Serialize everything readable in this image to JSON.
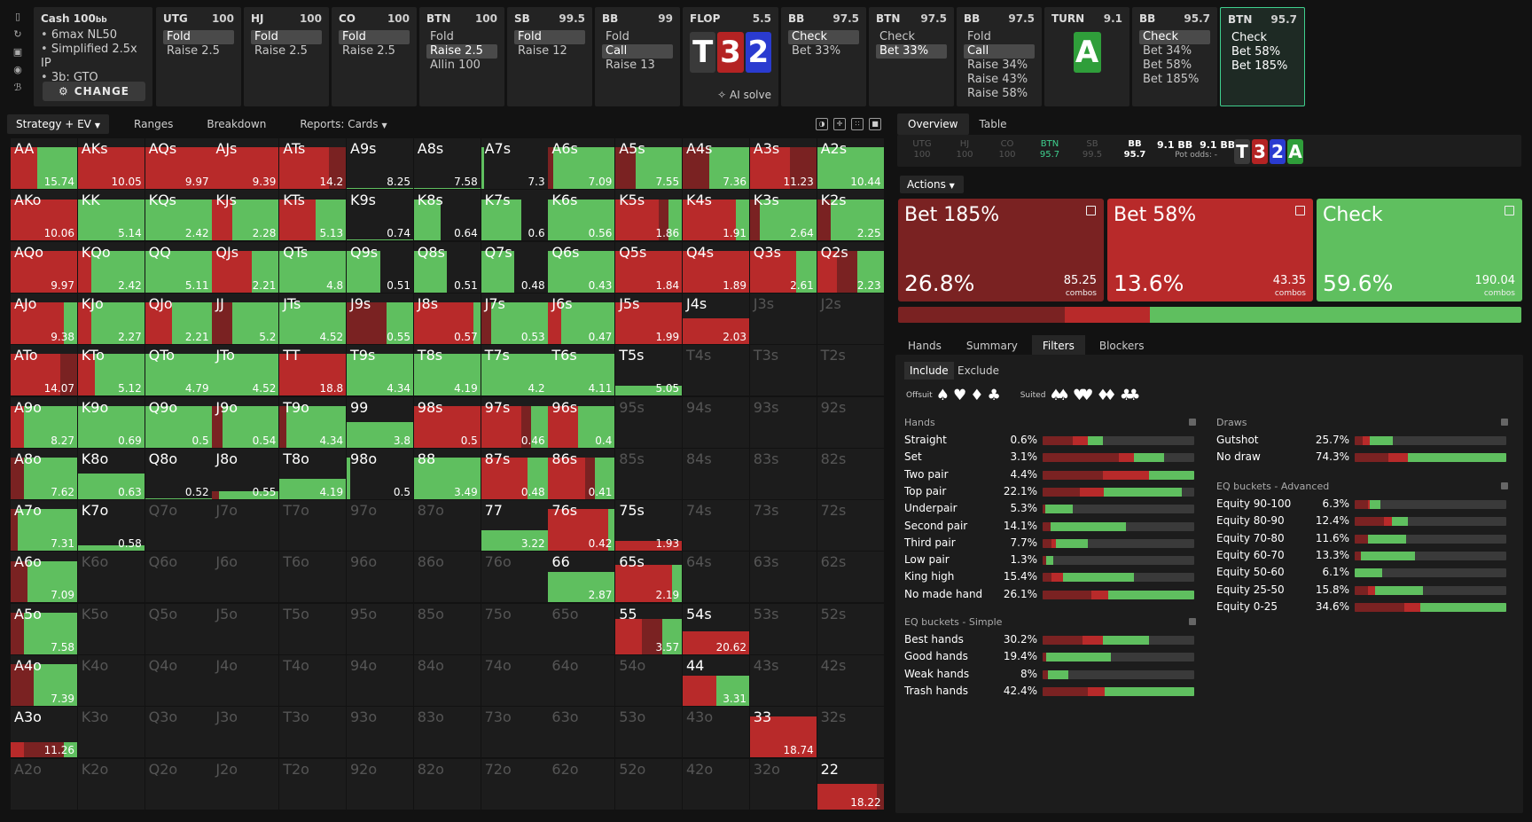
{
  "colors": {
    "red": "#b82a2a",
    "darkred": "#7a2222",
    "green": "#5fbf5f",
    "empty": "#1c1c1c"
  },
  "strip": {
    "cash": {
      "title": "Cash",
      "stack": "100",
      "unit": "bb",
      "info": [
        "6max NL50",
        "Simplified 2.5x IP",
        "3b: GTO"
      ],
      "change": "CHANGE"
    },
    "cards": [
      {
        "pos": "UTG",
        "stack": "100",
        "acts": [
          {
            "t": "Fold",
            "on": true
          },
          {
            "t": "Raise 2.5",
            "on": false
          }
        ]
      },
      {
        "pos": "HJ",
        "stack": "100",
        "acts": [
          {
            "t": "Fold",
            "on": true
          },
          {
            "t": "Raise 2.5",
            "on": false
          }
        ]
      },
      {
        "pos": "CO",
        "stack": "100",
        "acts": [
          {
            "t": "Fold",
            "on": true
          },
          {
            "t": "Raise 2.5",
            "on": false
          }
        ]
      },
      {
        "pos": "BTN",
        "stack": "100",
        "acts": [
          {
            "t": "Fold",
            "on": false
          },
          {
            "t": "Raise 2.5",
            "on": true
          },
          {
            "t": "Allin 100",
            "on": false
          }
        ]
      },
      {
        "pos": "SB",
        "stack": "99.5",
        "acts": [
          {
            "t": "Fold",
            "on": true
          },
          {
            "t": "Raise 12",
            "on": false
          }
        ]
      },
      {
        "pos": "BB",
        "stack": "99",
        "acts": [
          {
            "t": "Fold",
            "on": false
          },
          {
            "t": "Call",
            "on": true
          },
          {
            "t": "Raise 13",
            "on": false
          }
        ]
      },
      {
        "pos": "FLOP",
        "stack": "5.5",
        "board": true
      },
      {
        "pos": "BB",
        "stack": "97.5",
        "acts": [
          {
            "t": "Check",
            "on": true
          },
          {
            "t": "Bet 33%",
            "on": false
          }
        ]
      },
      {
        "pos": "BTN",
        "stack": "97.5",
        "acts": [
          {
            "t": "Check",
            "on": false
          },
          {
            "t": "Bet 33%",
            "on": true
          }
        ]
      },
      {
        "pos": "BB",
        "stack": "97.5",
        "acts": [
          {
            "t": "Fold",
            "on": false
          },
          {
            "t": "Call",
            "on": true
          },
          {
            "t": "Raise 34%",
            "on": false
          },
          {
            "t": "Raise 43%",
            "on": false
          },
          {
            "t": "Raise 58%",
            "on": false
          }
        ]
      },
      {
        "pos": "TURN",
        "stack": "9.1",
        "turn": true
      },
      {
        "pos": "BB",
        "stack": "95.7",
        "acts": [
          {
            "t": "Check",
            "on": true
          },
          {
            "t": "Bet 34%",
            "on": false
          },
          {
            "t": "Bet 58%",
            "on": false
          },
          {
            "t": "Bet 185%",
            "on": false
          }
        ]
      },
      {
        "pos": "BTN",
        "stack": "95.7",
        "sel": true,
        "acts": [
          {
            "t": "Check",
            "on": false
          },
          {
            "t": "Bet 58%",
            "on": false
          },
          {
            "t": "Bet 185%",
            "on": false
          }
        ]
      }
    ],
    "flop": [
      {
        "r": "T",
        "s": "s"
      },
      {
        "r": "3",
        "s": "h"
      },
      {
        "r": "2",
        "s": "d"
      }
    ],
    "turn": {
      "r": "A",
      "s": "c"
    },
    "ai": "AI solve"
  },
  "left_toolbar": [
    {
      "t": "Strategy + EV",
      "on": true,
      "caret": true
    },
    {
      "t": "Ranges"
    },
    {
      "t": "Breakdown"
    },
    {
      "t": "Reports: Cards",
      "caret": true
    }
  ],
  "grid": [
    [
      "AA",
      "15.74",
      "r:0.4,g:0.6"
    ],
    [
      "AKs",
      "10.05",
      "r:1"
    ],
    [
      "AQs",
      "9.97",
      "r:1"
    ],
    [
      "AJs",
      "9.39",
      "r:1"
    ],
    [
      "ATs",
      "14.2",
      "r:0.75,R:0.25"
    ],
    [
      "A9s",
      "8.25",
      "z"
    ],
    [
      "A8s",
      "7.58",
      "z"
    ],
    [
      "A7s",
      "7.3",
      "g:0.04"
    ],
    [
      "A6s",
      "7.09",
      "R:0.08,g:0.92"
    ],
    [
      "A5s",
      "7.55",
      "R:0.3,g:0.7"
    ],
    [
      "A4s",
      "7.36",
      "R:0.4,g:0.6"
    ],
    [
      "A3s",
      "11.23",
      "r:0.6,R:0.4"
    ],
    [
      "A2s",
      "10.44",
      "g:1"
    ],
    [
      "AKo",
      "10.06",
      "r:1"
    ],
    [
      "KK",
      "5.14",
      "g:1"
    ],
    [
      "KQs",
      "2.42",
      "g:1"
    ],
    [
      "KJs",
      "2.28",
      "r:0.3,g:0.7"
    ],
    [
      "KTs",
      "5.13",
      "r:0.55,g:0.45"
    ],
    [
      "K9s",
      "0.74",
      "z"
    ],
    [
      "K8s",
      "0.64",
      "g:0.4"
    ],
    [
      "K7s",
      "0.6",
      "g:0.6"
    ],
    [
      "K6s",
      "0.56",
      "g:1"
    ],
    [
      "K5s",
      "1.86",
      "r:0.65,R:0.15,g:0.2"
    ],
    [
      "K4s",
      "1.91",
      "r:0.8,g:0.2"
    ],
    [
      "K3s",
      "2.64",
      "R:0.15,g:0.85"
    ],
    [
      "K2s",
      "2.25",
      "R:0.2,g:0.8"
    ],
    [
      "AQo",
      "9.97",
      "r:1"
    ],
    [
      "KQo",
      "2.42",
      "r:0.2,g:0.8"
    ],
    [
      "QQ",
      "5.11",
      "g:1"
    ],
    [
      "QJs",
      "2.21",
      "r:0.6,g:0.4"
    ],
    [
      "QTs",
      "4.8",
      "g:1"
    ],
    [
      "Q9s",
      "0.51",
      "g:0.5"
    ],
    [
      "Q8s",
      "0.51",
      "g:0.5"
    ],
    [
      "Q7s",
      "0.48",
      "g:0.5"
    ],
    [
      "Q6s",
      "0.43",
      "g:1"
    ],
    [
      "Q5s",
      "1.84",
      "r:1"
    ],
    [
      "Q4s",
      "1.89",
      "r:1"
    ],
    [
      "Q3s",
      "2.61",
      "r:0.7,g:0.3"
    ],
    [
      "Q2s",
      "2.23",
      "r:0.3,R:0.3,g:0.4"
    ],
    [
      "AJo",
      "9.38",
      "r:0.8,g:0.2"
    ],
    [
      "KJo",
      "2.27",
      "r:0.2,g:0.8"
    ],
    [
      "QJo",
      "2.21",
      "r:0.4,g:0.6"
    ],
    [
      "JJ",
      "5.2",
      "R:0.3,g:0.7"
    ],
    [
      "JTs",
      "4.52",
      "g:1"
    ],
    [
      "J9s",
      "0.55",
      "R:0.6,g:0.4"
    ],
    [
      "J8s",
      "0.57",
      "r:0.9,g:0.1"
    ],
    [
      "J7s",
      "0.53",
      "R:0.15,g:0.85"
    ],
    [
      "J6s",
      "0.47",
      "r:0.2,g:0.8"
    ],
    [
      "J5s",
      "1.99",
      "r:1"
    ],
    [
      "J4s",
      "2.03",
      "r:1,h:0.5"
    ],
    [
      "J3s",
      "",
      "e"
    ],
    [
      "J2s",
      "",
      "e"
    ],
    [
      "ATo",
      "14.07",
      "r:0.75,R:0.25"
    ],
    [
      "KTo",
      "5.12",
      "r:0.25,g:0.75"
    ],
    [
      "QTo",
      "4.79",
      "g:1"
    ],
    [
      "JTo",
      "4.52",
      "g:1"
    ],
    [
      "TT",
      "18.8",
      "r:1"
    ],
    [
      "T9s",
      "4.34",
      "g:1"
    ],
    [
      "T8s",
      "4.19",
      "g:1"
    ],
    [
      "T7s",
      "4.2",
      "g:1"
    ],
    [
      "T6s",
      "4.11",
      "g:1"
    ],
    [
      "T5s",
      "5.05",
      "g:1,h:0.2"
    ],
    [
      "T4s",
      "",
      "e"
    ],
    [
      "T3s",
      "",
      "e"
    ],
    [
      "T2s",
      "",
      "e"
    ],
    [
      "A9o",
      "8.27",
      "r:0.2,g:0.8"
    ],
    [
      "K9o",
      "0.69",
      "g:1"
    ],
    [
      "Q9o",
      "0.5",
      "g:1"
    ],
    [
      "J9o",
      "0.54",
      "R:0.15,g:0.85"
    ],
    [
      "T9o",
      "4.34",
      "R:0.1,g:0.9"
    ],
    [
      "99",
      "3.8",
      "g:1,h:0.5"
    ],
    [
      "98s",
      "0.5",
      "r:1"
    ],
    [
      "97s",
      "0.46",
      "r:0.6,R:0.15,g:0.25"
    ],
    [
      "96s",
      "0.4",
      "r:0.45,g:0.55"
    ],
    [
      "95s",
      "",
      "e"
    ],
    [
      "94s",
      "",
      "e"
    ],
    [
      "93s",
      "",
      "e"
    ],
    [
      "92s",
      "",
      "e"
    ],
    [
      "A8o",
      "7.62",
      "R:0.2,g:0.8"
    ],
    [
      "K8o",
      "0.63",
      "g:1,h:0.5"
    ],
    [
      "Q8o",
      "0.52",
      "z"
    ],
    [
      "J8o",
      "0.55",
      "R:0.1,g:0.9,h:0.15"
    ],
    [
      "T8o",
      "4.19",
      "g:1,h:0.4"
    ],
    [
      "98o",
      "0.5",
      "g:0.05"
    ],
    [
      "88",
      "3.49",
      "g:1"
    ],
    [
      "87s",
      "0.48",
      "r:0.7,g:0.3"
    ],
    [
      "86s",
      "0.41",
      "r:0.55,R:0.15,g:0.3"
    ],
    [
      "85s",
      "",
      "e"
    ],
    [
      "84s",
      "",
      "e"
    ],
    [
      "83s",
      "",
      "e"
    ],
    [
      "82s",
      "",
      "e"
    ],
    [
      "A7o",
      "7.31",
      "R:0.1,g:0.9"
    ],
    [
      "K7o",
      "0.58",
      "g:1,h:0.1"
    ],
    [
      "Q7o",
      "",
      "e"
    ],
    [
      "J7o",
      "",
      "e"
    ],
    [
      "T7o",
      "",
      "e"
    ],
    [
      "97o",
      "",
      "e"
    ],
    [
      "87o",
      "",
      "e"
    ],
    [
      "77",
      "3.22",
      "g:1,h:0.4"
    ],
    [
      "76s",
      "0.42",
      "r:0.9,g:0.1"
    ],
    [
      "75s",
      "1.93",
      "r:1,h:0.2"
    ],
    [
      "74s",
      "",
      "e"
    ],
    [
      "73s",
      "",
      "e"
    ],
    [
      "72s",
      "",
      "e"
    ],
    [
      "A6o",
      "7.09",
      "R:0.25,g:0.75"
    ],
    [
      "K6o",
      "",
      "e"
    ],
    [
      "Q6o",
      "",
      "e"
    ],
    [
      "J6o",
      "",
      "e"
    ],
    [
      "T6o",
      "",
      "e"
    ],
    [
      "96o",
      "",
      "e"
    ],
    [
      "86o",
      "",
      "e"
    ],
    [
      "76o",
      "",
      "e"
    ],
    [
      "66",
      "2.87",
      "g:1,h:0.6"
    ],
    [
      "65s",
      "2.19",
      "r:0.85,g:0.15,h:0.75"
    ],
    [
      "64s",
      "",
      "e"
    ],
    [
      "63s",
      "",
      "e"
    ],
    [
      "62s",
      "",
      "e"
    ],
    [
      "A5o",
      "7.58",
      "R:0.2,g:0.8"
    ],
    [
      "K5o",
      "",
      "e"
    ],
    [
      "Q5o",
      "",
      "e"
    ],
    [
      "J5o",
      "",
      "e"
    ],
    [
      "T5o",
      "",
      "e"
    ],
    [
      "95o",
      "",
      "e"
    ],
    [
      "85o",
      "",
      "e"
    ],
    [
      "75o",
      "",
      "e"
    ],
    [
      "65o",
      "",
      "e"
    ],
    [
      "55",
      "3.57",
      "r:0.4,R:0.3,g:0.3,h:0.7"
    ],
    [
      "54s",
      "20.62",
      "r:1,h:0.45"
    ],
    [
      "53s",
      "",
      "e"
    ],
    [
      "52s",
      "",
      "e"
    ],
    [
      "A4o",
      "7.39",
      "R:0.35,g:0.65"
    ],
    [
      "K4o",
      "",
      "e"
    ],
    [
      "Q4o",
      "",
      "e"
    ],
    [
      "J4o",
      "",
      "e"
    ],
    [
      "T4o",
      "",
      "e"
    ],
    [
      "94o",
      "",
      "e"
    ],
    [
      "84o",
      "",
      "e"
    ],
    [
      "74o",
      "",
      "e"
    ],
    [
      "64o",
      "",
      "e"
    ],
    [
      "54o",
      "",
      "e"
    ],
    [
      "44",
      "3.31",
      "r:0.5,g:0.5,h:0.6"
    ],
    [
      "43s",
      "",
      "e"
    ],
    [
      "42s",
      "",
      "e"
    ],
    [
      "A3o",
      "11.26",
      "r:0.2,R:0.6,g:0.2,h:0.3"
    ],
    [
      "K3o",
      "",
      "e"
    ],
    [
      "Q3o",
      "",
      "e"
    ],
    [
      "J3o",
      "",
      "e"
    ],
    [
      "T3o",
      "",
      "e"
    ],
    [
      "93o",
      "",
      "e"
    ],
    [
      "83o",
      "",
      "e"
    ],
    [
      "73o",
      "",
      "e"
    ],
    [
      "63o",
      "",
      "e"
    ],
    [
      "53o",
      "",
      "e"
    ],
    [
      "43o",
      "",
      "e"
    ],
    [
      "33",
      "18.74",
      "r:1"
    ],
    [
      "32s",
      "",
      "e"
    ],
    [
      "A2o",
      "",
      "e"
    ],
    [
      "K2o",
      "",
      "e"
    ],
    [
      "Q2o",
      "",
      "e"
    ],
    [
      "J2o",
      "",
      "e"
    ],
    [
      "T2o",
      "",
      "e"
    ],
    [
      "92o",
      "",
      "e"
    ],
    [
      "82o",
      "",
      "e"
    ],
    [
      "72o",
      "",
      "e"
    ],
    [
      "62o",
      "",
      "e"
    ],
    [
      "52o",
      "",
      "e"
    ],
    [
      "42o",
      "",
      "e"
    ],
    [
      "32o",
      "",
      "e"
    ],
    [
      "22",
      "18.22",
      "r:0.9,R:0.1,h:0.5"
    ]
  ],
  "right_tabs": [
    "Overview",
    "Table"
  ],
  "path": {
    "nodes": [
      {
        "p": "UTG",
        "v": "100"
      },
      {
        "p": "HJ",
        "v": "100"
      },
      {
        "p": "CO",
        "v": "100"
      },
      {
        "p": "BTN",
        "v": "95.7",
        "c": "act"
      },
      {
        "p": "SB",
        "v": "99.5"
      },
      {
        "p": "BB",
        "v": "95.7",
        "c": "cur"
      }
    ],
    "pot1": "9.1 BB",
    "pot2": "9.1 BB",
    "potodds": "Pot odds:",
    "potval": "-"
  },
  "actions_label": "Actions",
  "big": [
    {
      "name": "Bet 185%",
      "pct": "26.8%",
      "combos": "85.25",
      "cl": "combos",
      "color": "#7a2222"
    },
    {
      "name": "Bet 58%",
      "pct": "13.6%",
      "combos": "43.35",
      "cl": "combos",
      "color": "#b82a2a"
    },
    {
      "name": "Check",
      "pct": "59.6%",
      "combos": "190.04",
      "cl": "combos",
      "color": "#5fbf5f"
    }
  ],
  "dist": [
    26.8,
    13.6,
    59.6
  ],
  "bottom_tabs": [
    "Hands",
    "Summary",
    "Filters",
    "Blockers"
  ],
  "filters": {
    "include": "Include",
    "exclude": "Exclude",
    "offsuit": "Offsuit",
    "suited": "Suited",
    "hands_title": "Hands",
    "hands": [
      {
        "l": "Straight",
        "v": "0.6%",
        "b": [
          0.2,
          0.1,
          0.1,
          0
        ]
      },
      {
        "l": "Set",
        "v": "3.1%",
        "b": [
          0.5,
          0.1,
          0.2,
          0
        ]
      },
      {
        "l": "Two pair",
        "v": "4.4%",
        "b": [
          0.4,
          0.3,
          0.3,
          0
        ]
      },
      {
        "l": "Top pair",
        "v": "22.1%",
        "b": [
          0.27,
          0.18,
          0.57,
          0.1
        ]
      },
      {
        "l": "Underpair",
        "v": "5.3%",
        "b": [
          0.1,
          0.0,
          0.9,
          0.8
        ]
      },
      {
        "l": "Second pair",
        "v": "14.1%",
        "b": [
          0.1,
          0.0,
          0.9,
          0.45
        ]
      },
      {
        "l": "Third pair",
        "v": "7.7%",
        "b": [
          0.2,
          0.1,
          0.7,
          0.7
        ]
      },
      {
        "l": "Low pair",
        "v": "1.3%",
        "b": [
          0.3,
          0.0,
          0.7,
          0.93
        ]
      },
      {
        "l": "King high",
        "v": "15.4%",
        "b": [
          0.1,
          0.12,
          0.78,
          0.4
        ]
      },
      {
        "l": "No made hand",
        "v": "26.1%",
        "b": [
          0.32,
          0.11,
          0.57,
          0
        ]
      }
    ],
    "simple_title": "EQ buckets - Simple",
    "simple": [
      {
        "l": "Best hands",
        "v": "30.2%",
        "b": [
          0.38,
          0.19,
          0.43,
          0.3
        ]
      },
      {
        "l": "Good hands",
        "v": "19.4%",
        "b": [
          0.05,
          0.0,
          0.95,
          0.55
        ]
      },
      {
        "l": "Weak hands",
        "v": "8%",
        "b": [
          0.2,
          0.0,
          0.8,
          0.83
        ]
      },
      {
        "l": "Trash hands",
        "v": "42.4%",
        "b": [
          0.3,
          0.11,
          0.59,
          0
        ]
      }
    ],
    "draws_title": "Draws",
    "draws": [
      {
        "l": "Gutshot",
        "v": "25.7%",
        "b": [
          0.2,
          0.2,
          0.6,
          0.75
        ]
      },
      {
        "l": "No draw",
        "v": "74.3%",
        "b": [
          0.22,
          0.13,
          0.65,
          0
        ]
      }
    ],
    "adv_title": "EQ buckets - Advanced",
    "adv": [
      {
        "l": "Equity 90-100",
        "v": "6.3%",
        "b": [
          0.5,
          0.1,
          0.4,
          0.83
        ]
      },
      {
        "l": "Equity 80-90",
        "v": "12.4%",
        "b": [
          0.55,
          0.15,
          0.3,
          0.65
        ]
      },
      {
        "l": "Equity 70-80",
        "v": "11.6%",
        "b": [
          0.25,
          0.0,
          0.75,
          0.66
        ]
      },
      {
        "l": "Equity 60-70",
        "v": "13.3%",
        "b": [
          0.1,
          0.0,
          0.9,
          0.6
        ]
      },
      {
        "l": "Equity 50-60",
        "v": "6.1%",
        "b": [
          0,
          0,
          1,
          0.82
        ]
      },
      {
        "l": "Equity 25-50",
        "v": "15.8%",
        "b": [
          0.2,
          0.1,
          0.7,
          0.55
        ]
      },
      {
        "l": "Equity 0-25",
        "v": "34.6%",
        "b": [
          0.33,
          0.1,
          0.57,
          0
        ]
      }
    ]
  }
}
